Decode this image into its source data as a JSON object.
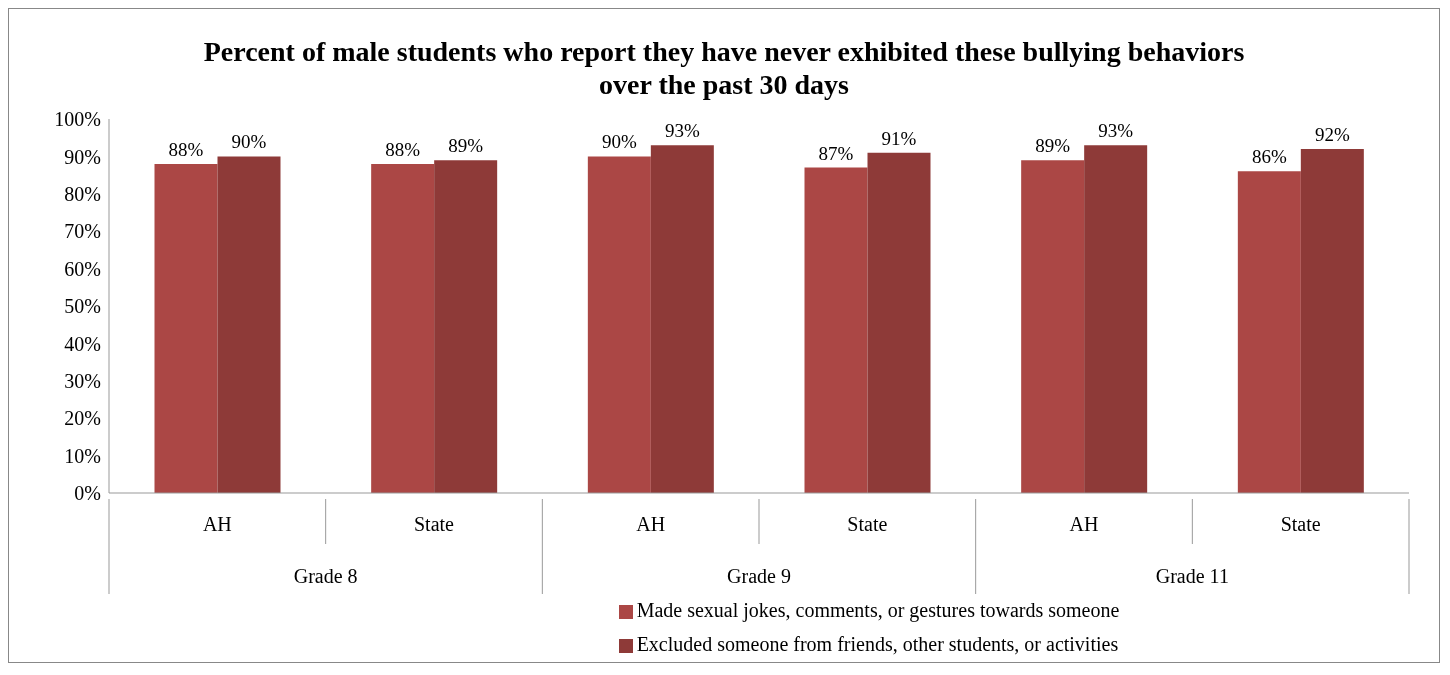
{
  "chart_data": {
    "type": "bar",
    "title": "Percent of male students who report they have never exhibited these bullying behaviors over the past 30 days",
    "categories": [
      "AH",
      "State",
      "AH",
      "State",
      "AH",
      "State"
    ],
    "annotations": [
      "Grade 8",
      "Grade 9",
      "Grade 11"
    ],
    "series": [
      {
        "name": "Made sexual jokes, comments, or gestures towards someone",
        "color": "#ab4745",
        "values": [
          88,
          88,
          90,
          87,
          89,
          86
        ],
        "value_labels": [
          "88%",
          "88%",
          "90%",
          "87%",
          "89%",
          "86%"
        ]
      },
      {
        "name": "Excluded someone from friends, other students, or activities",
        "color": "#8e3a38",
        "values": [
          90,
          89,
          93,
          91,
          93,
          92
        ],
        "value_labels": [
          "90%",
          "89%",
          "93%",
          "91%",
          "93%",
          "92%"
        ]
      }
    ],
    "ylim": [
      0,
      100
    ],
    "yticks": [
      {
        "value": 0,
        "label": "0%"
      },
      {
        "value": 10,
        "label": "10%"
      },
      {
        "value": 20,
        "label": "20%"
      },
      {
        "value": 30,
        "label": "30%"
      },
      {
        "value": 40,
        "label": "40%"
      },
      {
        "value": 50,
        "label": "50%"
      },
      {
        "value": 60,
        "label": "60%"
      },
      {
        "value": 70,
        "label": "70%"
      },
      {
        "value": 80,
        "label": "80%"
      },
      {
        "value": 90,
        "label": "90%"
      },
      {
        "value": 100,
        "label": "100%"
      }
    ],
    "grid": false,
    "legend": "bottom"
  }
}
